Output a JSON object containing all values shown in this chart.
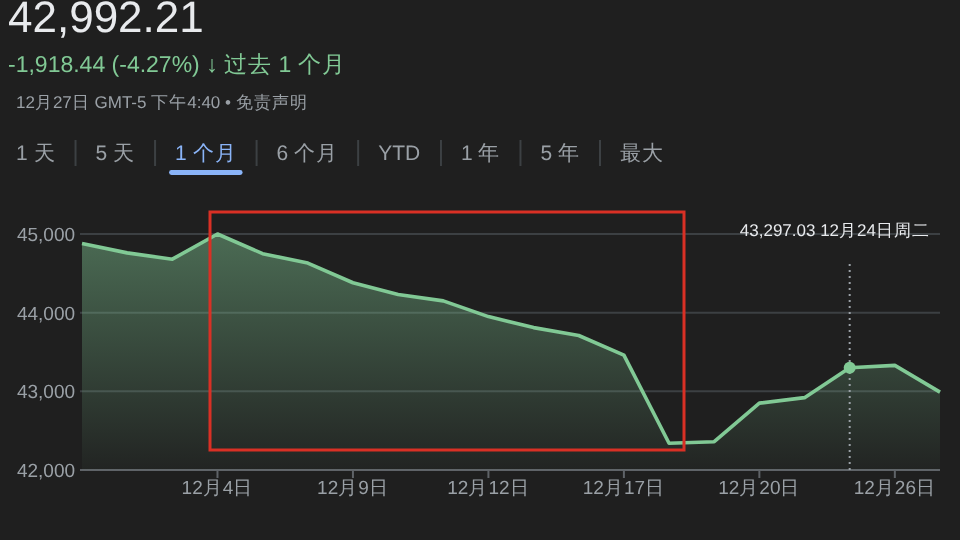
{
  "chart_data": {
    "type": "area",
    "title": "42,992.21",
    "subtitle": "-1,918.44 (-4.27%) ↓ 过去 1 个月",
    "annotations": [
      "12月27日 GMT-5 下午4:40 • 免责声明",
      "1 天",
      "5 天",
      "1 个月",
      "6 个月",
      "YTD",
      "1 年",
      "5 年",
      "最大",
      "43,297.03  12月24日周二"
    ],
    "categories": [
      null,
      null,
      null,
      "12月4日",
      null,
      null,
      "12月9日",
      null,
      null,
      "12月12日",
      null,
      null,
      "12月17日",
      null,
      null,
      "12月20日",
      null,
      null,
      "12月26日",
      null
    ],
    "series": [
      {
        "color": "#81c995",
        "values": [
          44880,
          44760,
          44680,
          45000,
          44750,
          44630,
          44380,
          44230,
          44150,
          43950,
          43810,
          43710,
          43460,
          42340,
          42360,
          42850,
          42920,
          43300,
          43330,
          42990
        ]
      }
    ],
    "ylim": [
      42000,
      45000
    ],
    "yticks": [
      {
        "value": 42000,
        "label": "42,000"
      },
      {
        "value": 43000,
        "label": "43,000"
      },
      {
        "value": 44000,
        "label": "44,000"
      },
      {
        "value": 45000,
        "label": "45,000"
      }
    ],
    "grid": "y"
  }
}
